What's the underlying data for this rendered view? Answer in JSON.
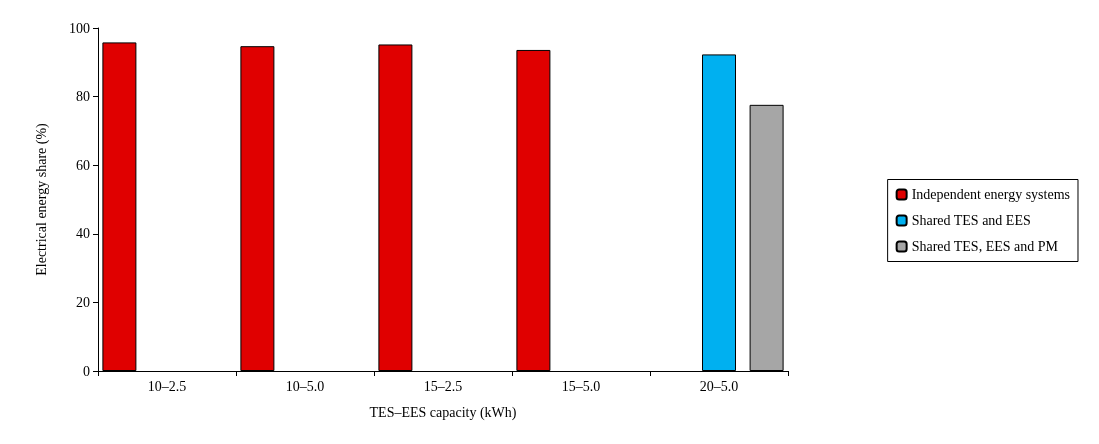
{
  "chart_data": {
    "type": "bar",
    "categories": [
      "10–2.5",
      "10–5.0",
      "15–2.5",
      "15–5.0",
      "20–5.0"
    ],
    "series": [
      {
        "name": "Independent energy systems",
        "color": "#e00000",
        "values": [
          95.8,
          94.7,
          95.2,
          93.6,
          null
        ]
      },
      {
        "name": "Shared TES and EES",
        "color": "#00b0f0",
        "values": [
          null,
          null,
          null,
          null,
          92.3
        ]
      },
      {
        "name": "Shared TES, EES and PM",
        "color": "#a6a6a6",
        "values": [
          null,
          null,
          null,
          null,
          77.6
        ]
      }
    ],
    "xlabel": "TES–EES capacity (kWh)",
    "ylabel": "Electrical energy share (%)",
    "ylim": [
      0,
      100
    ],
    "yticks": [
      0,
      20,
      40,
      60,
      80,
      100
    ],
    "grid": false,
    "legend": "right"
  }
}
